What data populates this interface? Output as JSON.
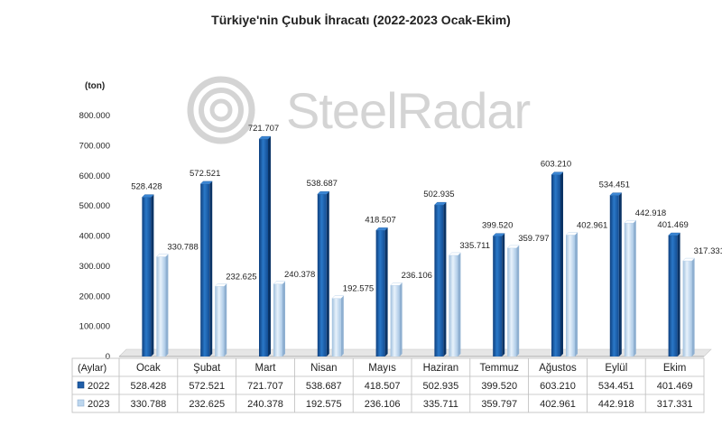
{
  "chart_data": {
    "type": "bar",
    "title": "Türkiye'nin Çubuk İhracatı (2022-2023 Ocak-Ekim)",
    "unit_label": "(ton)",
    "table_header": "(Aylar)",
    "watermark": "SteelRadar",
    "categories": [
      "Ocak",
      "Şubat",
      "Mart",
      "Nisan",
      "Mayıs",
      "Haziran",
      "Temmuz",
      "Ağustos",
      "Eylül",
      "Ekim"
    ],
    "ylim": [
      0,
      800000
    ],
    "yticks": [
      "0",
      "100.000",
      "200.000",
      "300.000",
      "400.000",
      "500.000",
      "600.000",
      "700.000",
      "800.000"
    ],
    "series": [
      {
        "name": "2022",
        "color": "#1f5ea8",
        "values": [
          528428,
          572521,
          721707,
          538687,
          418507,
          502935,
          399520,
          603210,
          534451,
          401469
        ],
        "labels": [
          "528.428",
          "572.521",
          "721.707",
          "538.687",
          "418.507",
          "502.935",
          "399.520",
          "603.210",
          "534.451",
          "401.469"
        ]
      },
      {
        "name": "2023",
        "color": "#bcd6ee",
        "values": [
          330788,
          232625,
          240378,
          192575,
          236106,
          335711,
          359797,
          402961,
          442918,
          317331
        ],
        "labels": [
          "330.788",
          "232.625",
          "240.378",
          "192.575",
          "236.106",
          "335.711",
          "359.797",
          "402.961",
          "442.918",
          "317.331"
        ]
      }
    ],
    "grid": false,
    "legend": "table-bottom"
  }
}
